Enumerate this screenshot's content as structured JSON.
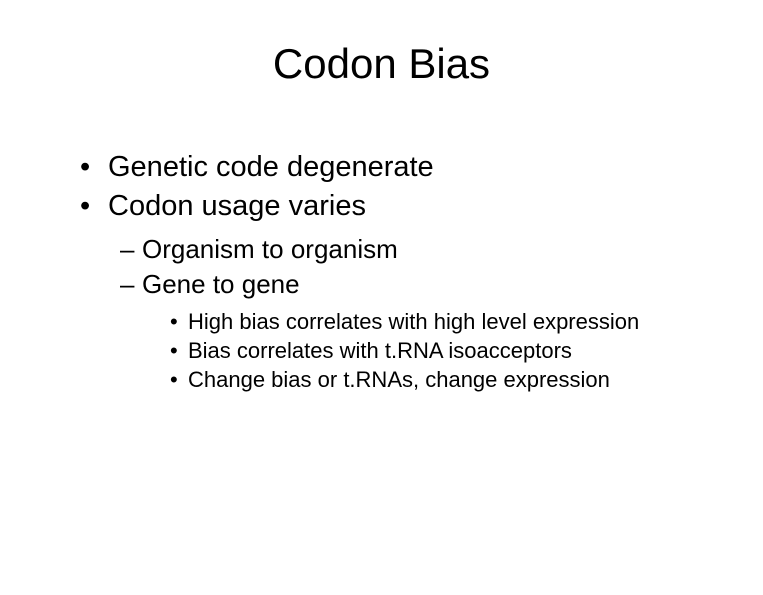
{
  "slide": {
    "title": "Codon Bias",
    "bullets_l1": [
      "Genetic code degenerate",
      "Codon usage varies"
    ],
    "bullets_l2": [
      "Organism to organism",
      "Gene to gene"
    ],
    "bullets_l3": [
      "High bias correlates with high level expression",
      "Bias correlates with t.RNA isoacceptors",
      "Change bias or t.RNAs, change expression"
    ],
    "markers": {
      "l1": "•",
      "l2": "–",
      "l3": "•"
    },
    "colors": {
      "background": "#ffffff",
      "text": "#000000"
    },
    "font_sizes": {
      "title": 42,
      "l1": 29,
      "l2": 26,
      "l3": 22
    }
  }
}
